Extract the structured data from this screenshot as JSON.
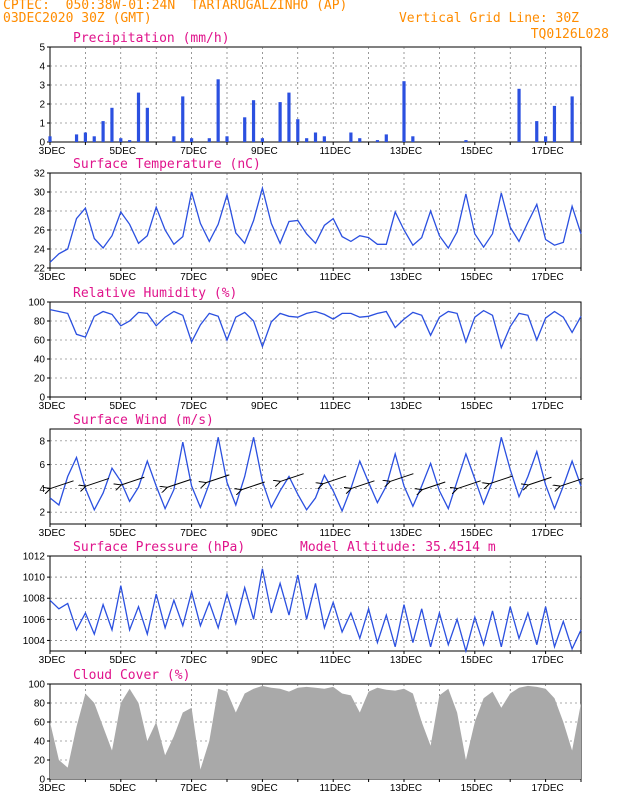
{
  "header": {
    "line1": "CPTEC:  050:38W-01:24N  TARTARUGALZINHO (AP)",
    "line2": "03DEC2020 30Z (GMT)",
    "grid_note": "Vertical Grid Line: 30Z",
    "code": "TQ0126L028",
    "colors": {
      "header": "#ff8c00",
      "title": "#e0148c",
      "series": "#2b50e0",
      "cloud": "#a9a9a9"
    }
  },
  "chart_data": [
    {
      "type": "bar",
      "title": "Precipitation (mm/h)",
      "ylim": [
        0,
        5
      ],
      "yticks": [
        0,
        1,
        2,
        3,
        4,
        5
      ],
      "x_labels": [
        "3DEC",
        "5DEC",
        "7DEC",
        "9DEC",
        "11DEC",
        "13DEC",
        "15DEC",
        "17DEC"
      ],
      "x_range_days": [
        0,
        15
      ],
      "grid": true,
      "x": [
        0.0,
        0.25,
        0.5,
        0.75,
        1.0,
        1.25,
        1.5,
        1.75,
        2.0,
        2.25,
        2.5,
        2.75,
        3.0,
        3.25,
        3.5,
        3.75,
        4.0,
        4.25,
        4.5,
        4.75,
        5.0,
        5.25,
        5.5,
        5.75,
        6.0,
        6.25,
        6.5,
        6.75,
        7.0,
        7.25,
        7.5,
        7.75,
        8.0,
        8.25,
        8.5,
        8.75,
        9.0,
        9.25,
        9.5,
        9.75,
        10.0,
        10.25,
        10.5,
        10.75,
        11.0,
        11.25,
        11.5,
        11.75,
        12.0,
        12.25,
        12.5,
        12.75,
        13.0,
        13.25,
        13.5,
        13.75,
        14.0,
        14.25,
        14.5,
        14.75
      ],
      "values": [
        0.3,
        0,
        0,
        0.4,
        0.5,
        0.3,
        1.1,
        1.8,
        0.2,
        0.1,
        2.6,
        1.8,
        0,
        0,
        0.3,
        2.4,
        0.2,
        0,
        0.2,
        3.3,
        0.3,
        0,
        1.3,
        2.2,
        0.2,
        0,
        2.1,
        2.6,
        1.2,
        0.2,
        0.5,
        0.3,
        0,
        0,
        0.5,
        0.2,
        0,
        0.1,
        0.4,
        0,
        3.2,
        0.3,
        0,
        0,
        0,
        0,
        0,
        0.1,
        0,
        0,
        0,
        0,
        0,
        2.8,
        0,
        1.1,
        0.3,
        1.9,
        0,
        2.4
      ]
    },
    {
      "type": "line",
      "title": "Surface Temperature (nC)",
      "ylim": [
        22,
        32
      ],
      "yticks": [
        22,
        24,
        26,
        28,
        30,
        32
      ],
      "x_labels": [
        "3DEC",
        "5DEC",
        "7DEC",
        "9DEC",
        "11DEC",
        "13DEC",
        "15DEC",
        "17DEC"
      ],
      "x_range_days": [
        0,
        15
      ],
      "grid": true,
      "x": [
        0.0,
        0.25,
        0.5,
        0.75,
        1.0,
        1.25,
        1.5,
        1.75,
        2.0,
        2.25,
        2.5,
        2.75,
        3.0,
        3.25,
        3.5,
        3.75,
        4.0,
        4.25,
        4.5,
        4.75,
        5.0,
        5.25,
        5.5,
        5.75,
        6.0,
        6.25,
        6.5,
        6.75,
        7.0,
        7.25,
        7.5,
        7.75,
        8.0,
        8.25,
        8.5,
        8.75,
        9.0,
        9.25,
        9.5,
        9.75,
        10.0,
        10.25,
        10.5,
        10.75,
        11.0,
        11.25,
        11.5,
        11.75,
        12.0,
        12.25,
        12.5,
        12.75,
        13.0,
        13.25,
        13.5,
        13.75,
        14.0,
        14.25,
        14.5,
        14.75,
        15.0
      ],
      "values": [
        22.6,
        23.5,
        24.0,
        27.2,
        28.3,
        25.1,
        24.1,
        25.4,
        27.9,
        26.6,
        24.6,
        25.4,
        28.4,
        26.0,
        24.5,
        25.3,
        30.0,
        26.7,
        24.8,
        26.6,
        29.7,
        25.7,
        24.6,
        27.0,
        30.4,
        26.7,
        24.6,
        26.9,
        27.0,
        25.6,
        24.6,
        26.5,
        27.2,
        25.3,
        24.8,
        25.4,
        25.2,
        24.5,
        24.5,
        27.9,
        26.0,
        24.4,
        25.2,
        28.0,
        25.4,
        24.1,
        25.8,
        29.8,
        25.6,
        24.2,
        25.6,
        29.9,
        26.3,
        24.8,
        26.8,
        28.7,
        25.0,
        24.4,
        24.7,
        28.5,
        25.6
      ]
    },
    {
      "type": "line",
      "title": "Relative Humidity (%)",
      "ylim": [
        0,
        100
      ],
      "yticks": [
        0,
        20,
        40,
        60,
        80,
        100
      ],
      "x_labels": [
        "3DEC",
        "5DEC",
        "7DEC",
        "9DEC",
        "11DEC",
        "13DEC",
        "15DEC",
        "17DEC"
      ],
      "x_range_days": [
        0,
        15
      ],
      "grid": true,
      "x": [
        0.0,
        0.25,
        0.5,
        0.75,
        1.0,
        1.25,
        1.5,
        1.75,
        2.0,
        2.25,
        2.5,
        2.75,
        3.0,
        3.25,
        3.5,
        3.75,
        4.0,
        4.25,
        4.5,
        4.75,
        5.0,
        5.25,
        5.5,
        5.75,
        6.0,
        6.25,
        6.5,
        6.75,
        7.0,
        7.25,
        7.5,
        7.75,
        8.0,
        8.25,
        8.5,
        8.75,
        9.0,
        9.25,
        9.5,
        9.75,
        10.0,
        10.25,
        10.5,
        10.75,
        11.0,
        11.25,
        11.5,
        11.75,
        12.0,
        12.25,
        12.5,
        12.75,
        13.0,
        13.25,
        13.5,
        13.75,
        14.0,
        14.25,
        14.5,
        14.75,
        15.0
      ],
      "values": [
        92,
        90,
        88,
        66,
        63,
        85,
        90,
        87,
        75,
        80,
        89,
        88,
        75,
        84,
        90,
        86,
        58,
        76,
        88,
        85,
        60,
        84,
        89,
        80,
        53,
        79,
        88,
        85,
        84,
        88,
        90,
        87,
        82,
        88,
        88,
        84,
        85,
        88,
        90,
        73,
        82,
        89,
        86,
        65,
        84,
        90,
        88,
        58,
        84,
        91,
        86,
        52,
        74,
        88,
        86,
        60,
        83,
        90,
        84,
        68,
        85
      ]
    },
    {
      "type": "line",
      "title": "Surface Wind (m/s)",
      "ylim": [
        1,
        9
      ],
      "yticks": [
        2,
        4,
        6,
        8
      ],
      "x_labels": [
        "3DEC",
        "5DEC",
        "7DEC",
        "9DEC",
        "11DEC",
        "13DEC",
        "15DEC",
        "17DEC"
      ],
      "x_range_days": [
        0,
        15
      ],
      "grid": true,
      "x": [
        0.0,
        0.25,
        0.5,
        0.75,
        1.0,
        1.25,
        1.5,
        1.75,
        2.0,
        2.25,
        2.5,
        2.75,
        3.0,
        3.25,
        3.5,
        3.75,
        4.0,
        4.25,
        4.5,
        4.75,
        5.0,
        5.25,
        5.5,
        5.75,
        6.0,
        6.25,
        6.5,
        6.75,
        7.0,
        7.25,
        7.5,
        7.75,
        8.0,
        8.25,
        8.5,
        8.75,
        9.0,
        9.25,
        9.5,
        9.75,
        10.0,
        10.25,
        10.5,
        10.75,
        11.0,
        11.25,
        11.5,
        11.75,
        12.0,
        12.25,
        12.5,
        12.75,
        13.0,
        13.25,
        13.5,
        13.75,
        14.0,
        14.25,
        14.5,
        14.75,
        15.0
      ],
      "values": [
        3.2,
        2.6,
        5.0,
        6.6,
        4.0,
        2.2,
        3.6,
        5.7,
        4.6,
        2.9,
        4.1,
        6.3,
        4.2,
        2.3,
        3.9,
        7.9,
        4.2,
        2.4,
        4.4,
        8.3,
        4.5,
        2.6,
        5.0,
        8.3,
        4.6,
        2.4,
        3.8,
        5.0,
        3.5,
        2.2,
        3.2,
        5.1,
        3.8,
        2.1,
        4.0,
        6.3,
        4.5,
        2.8,
        4.2,
        6.9,
        4.2,
        2.5,
        4.2,
        6.1,
        3.8,
        2.3,
        4.6,
        6.9,
        4.8,
        2.7,
        4.6,
        8.3,
        5.6,
        3.3,
        5.0,
        7.1,
        4.3,
        2.3,
        4.2,
        6.3,
        4.2
      ],
      "vectors_x": [
        0.1,
        1.1,
        2.1,
        3.4,
        4.5,
        5.5,
        6.6,
        7.8,
        8.6,
        9.7,
        10.6,
        11.6,
        12.5,
        13.6,
        14.5
      ],
      "vectors_speed": [
        4.3,
        4.5,
        4.6,
        4.4,
        4.8,
        4.2,
        4.9,
        4.7,
        4.3,
        4.9,
        4.2,
        4.3,
        4.7,
        4.6,
        4.5
      ]
    },
    {
      "type": "line",
      "title": "Surface Pressure (hPa)",
      "annotation": "Model Altitude: 35.4514 m",
      "ylim": [
        1003,
        1012
      ],
      "yticks": [
        1004,
        1006,
        1008,
        1010,
        1012
      ],
      "x_labels": [
        "3DEC",
        "5DEC",
        "7DEC",
        "9DEC",
        "11DEC",
        "13DEC",
        "15DEC",
        "17DEC"
      ],
      "x_range_days": [
        0,
        15
      ],
      "grid": true,
      "x": [
        0.0,
        0.25,
        0.5,
        0.75,
        1.0,
        1.25,
        1.5,
        1.75,
        2.0,
        2.25,
        2.5,
        2.75,
        3.0,
        3.25,
        3.5,
        3.75,
        4.0,
        4.25,
        4.5,
        4.75,
        5.0,
        5.25,
        5.5,
        5.75,
        6.0,
        6.25,
        6.5,
        6.75,
        7.0,
        7.25,
        7.5,
        7.75,
        8.0,
        8.25,
        8.5,
        8.75,
        9.0,
        9.25,
        9.5,
        9.75,
        10.0,
        10.25,
        10.5,
        10.75,
        11.0,
        11.25,
        11.5,
        11.75,
        12.0,
        12.25,
        12.5,
        12.75,
        13.0,
        13.25,
        13.5,
        13.75,
        14.0,
        14.25,
        14.5,
        14.75,
        15.0
      ],
      "values": [
        1007.8,
        1007.0,
        1007.5,
        1005.0,
        1006.6,
        1004.6,
        1007.4,
        1005.0,
        1009.2,
        1005.0,
        1007.2,
        1004.6,
        1008.4,
        1005.2,
        1007.8,
        1005.4,
        1008.6,
        1005.4,
        1007.6,
        1005.2,
        1008.4,
        1005.6,
        1009.0,
        1006.0,
        1010.8,
        1006.6,
        1009.4,
        1006.4,
        1010.2,
        1006.0,
        1009.4,
        1005.2,
        1007.6,
        1004.8,
        1006.6,
        1004.2,
        1007.0,
        1003.8,
        1006.4,
        1003.4,
        1007.4,
        1003.8,
        1007.0,
        1003.4,
        1006.6,
        1003.6,
        1006.0,
        1003.0,
        1006.2,
        1003.6,
        1006.8,
        1003.4,
        1007.2,
        1004.2,
        1006.6,
        1003.6,
        1007.2,
        1003.4,
        1005.8,
        1003.2,
        1005.0
      ]
    },
    {
      "type": "area",
      "title": "Cloud Cover (%)",
      "ylim": [
        0,
        100
      ],
      "yticks": [
        0,
        20,
        40,
        60,
        80,
        100
      ],
      "x_labels": [
        "3DEC",
        "5DEC",
        "7DEC",
        "9DEC",
        "11DEC",
        "13DEC",
        "15DEC",
        "17DEC"
      ],
      "x_range_days": [
        0,
        15
      ],
      "grid": true,
      "x": [
        0.0,
        0.25,
        0.5,
        0.75,
        1.0,
        1.25,
        1.5,
        1.75,
        2.0,
        2.25,
        2.5,
        2.75,
        3.0,
        3.25,
        3.5,
        3.75,
        4.0,
        4.25,
        4.5,
        4.75,
        5.0,
        5.25,
        5.5,
        5.75,
        6.0,
        6.25,
        6.5,
        6.75,
        7.0,
        7.25,
        7.5,
        7.75,
        8.0,
        8.25,
        8.5,
        8.75,
        9.0,
        9.25,
        9.5,
        9.75,
        10.0,
        10.25,
        10.5,
        10.75,
        11.0,
        11.25,
        11.5,
        11.75,
        12.0,
        12.25,
        12.5,
        12.75,
        13.0,
        13.25,
        13.5,
        13.75,
        14.0,
        14.25,
        14.5,
        14.75,
        15.0
      ],
      "values": [
        60,
        20,
        12,
        55,
        90,
        80,
        55,
        30,
        80,
        95,
        80,
        40,
        60,
        25,
        45,
        70,
        75,
        10,
        40,
        95,
        92,
        70,
        90,
        95,
        98,
        96,
        95,
        92,
        96,
        97,
        96,
        95,
        97,
        90,
        88,
        70,
        92,
        96,
        94,
        93,
        95,
        90,
        60,
        35,
        88,
        95,
        70,
        20,
        60,
        85,
        92,
        75,
        90,
        96,
        98,
        97,
        95,
        85,
        60,
        30,
        80
      ]
    }
  ]
}
